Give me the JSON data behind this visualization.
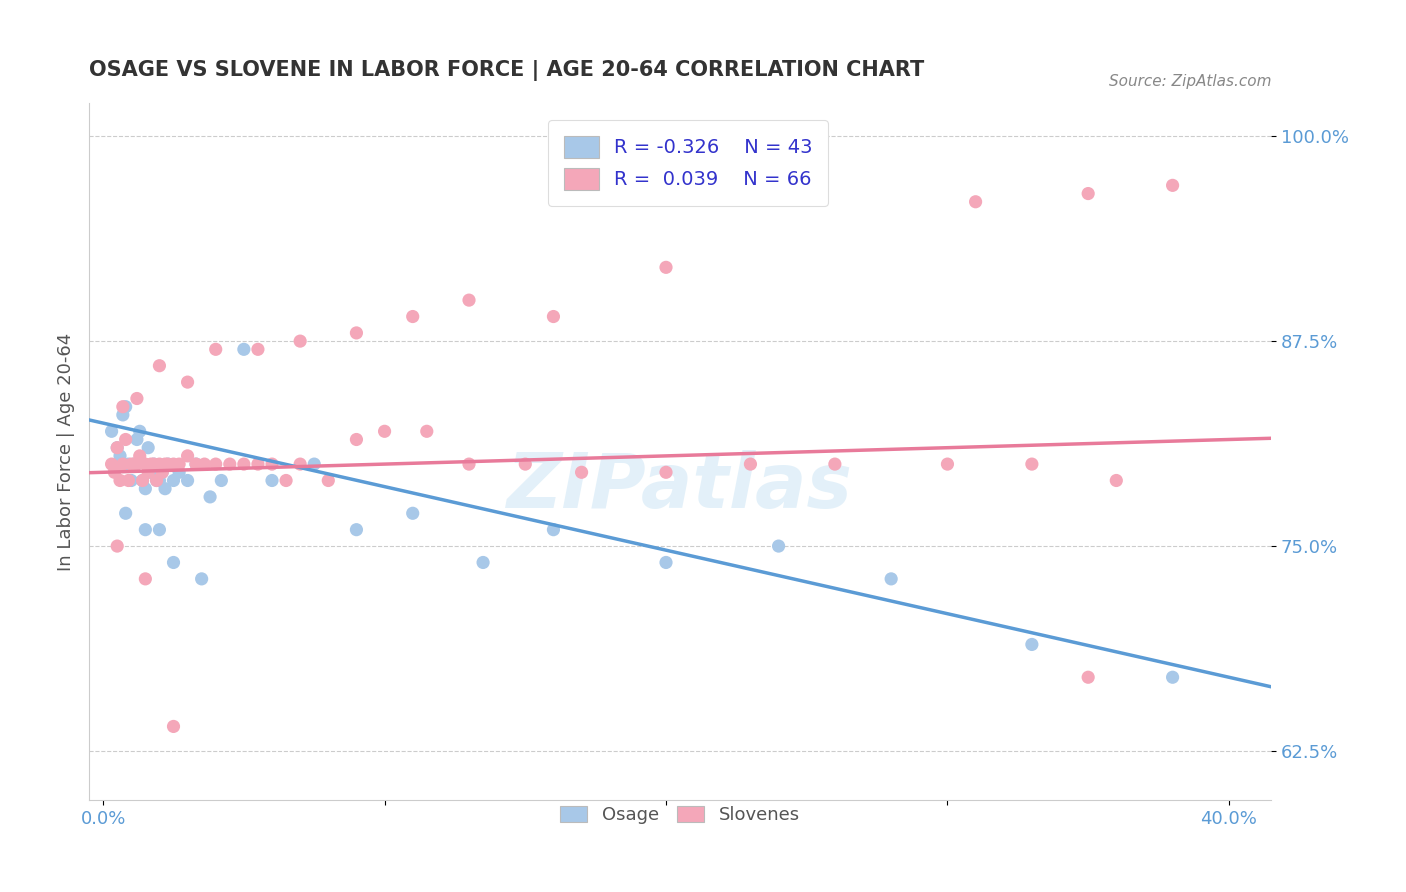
{
  "title": "OSAGE VS SLOVENE IN LABOR FORCE | AGE 20-64 CORRELATION CHART",
  "source_text": "Source: ZipAtlas.com",
  "ylabel": "In Labor Force | Age 20-64",
  "xlim": [
    -0.005,
    0.415
  ],
  "ylim": [
    0.595,
    1.02
  ],
  "xtick_positions": [
    0.0,
    0.1,
    0.2,
    0.3,
    0.4
  ],
  "xtick_labels": [
    "0.0%",
    "",
    "",
    "",
    "40.0%"
  ],
  "ytick_positions": [
    0.625,
    0.75,
    0.875,
    1.0
  ],
  "ytick_labels": [
    "62.5%",
    "75.0%",
    "87.5%",
    "100.0%"
  ],
  "osage_r": -0.326,
  "osage_n": 43,
  "slovene_r": 0.039,
  "slovene_n": 66,
  "osage_color": "#a8c8e8",
  "slovene_color": "#f4a7b9",
  "osage_line_color": "#5b9bd5",
  "slovene_line_color": "#e87a9a",
  "legend_r_color": "#3333cc",
  "osage_x": [
    0.003,
    0.005,
    0.006,
    0.007,
    0.008,
    0.009,
    0.01,
    0.011,
    0.012,
    0.013,
    0.014,
    0.015,
    0.016,
    0.017,
    0.018,
    0.019,
    0.02,
    0.021,
    0.022,
    0.023,
    0.025,
    0.027,
    0.03,
    0.033,
    0.038,
    0.042,
    0.05,
    0.06,
    0.075,
    0.09,
    0.11,
    0.135,
    0.16,
    0.2,
    0.24,
    0.28,
    0.33,
    0.38,
    0.008,
    0.015,
    0.02,
    0.025,
    0.035
  ],
  "osage_y": [
    0.82,
    0.81,
    0.805,
    0.83,
    0.835,
    0.8,
    0.79,
    0.8,
    0.815,
    0.82,
    0.79,
    0.785,
    0.81,
    0.795,
    0.8,
    0.79,
    0.79,
    0.795,
    0.785,
    0.8,
    0.79,
    0.795,
    0.79,
    0.8,
    0.78,
    0.79,
    0.87,
    0.79,
    0.8,
    0.76,
    0.77,
    0.74,
    0.76,
    0.74,
    0.75,
    0.73,
    0.69,
    0.67,
    0.77,
    0.76,
    0.76,
    0.74,
    0.73
  ],
  "slovene_x": [
    0.003,
    0.004,
    0.005,
    0.006,
    0.007,
    0.008,
    0.009,
    0.01,
    0.011,
    0.012,
    0.013,
    0.014,
    0.015,
    0.016,
    0.017,
    0.018,
    0.019,
    0.02,
    0.021,
    0.022,
    0.023,
    0.025,
    0.027,
    0.03,
    0.033,
    0.036,
    0.04,
    0.045,
    0.05,
    0.055,
    0.06,
    0.065,
    0.07,
    0.08,
    0.09,
    0.1,
    0.115,
    0.13,
    0.15,
    0.17,
    0.2,
    0.23,
    0.26,
    0.3,
    0.33,
    0.36,
    0.007,
    0.012,
    0.02,
    0.03,
    0.04,
    0.055,
    0.07,
    0.09,
    0.11,
    0.13,
    0.16,
    0.2,
    0.25,
    0.31,
    0.35,
    0.38,
    0.005,
    0.015,
    0.025,
    0.35
  ],
  "slovene_y": [
    0.8,
    0.795,
    0.81,
    0.79,
    0.8,
    0.815,
    0.79,
    0.8,
    0.8,
    0.8,
    0.805,
    0.79,
    0.8,
    0.795,
    0.8,
    0.8,
    0.79,
    0.8,
    0.795,
    0.8,
    0.8,
    0.8,
    0.8,
    0.805,
    0.8,
    0.8,
    0.8,
    0.8,
    0.8,
    0.8,
    0.8,
    0.79,
    0.8,
    0.79,
    0.815,
    0.82,
    0.82,
    0.8,
    0.8,
    0.795,
    0.795,
    0.8,
    0.8,
    0.8,
    0.8,
    0.79,
    0.835,
    0.84,
    0.86,
    0.85,
    0.87,
    0.87,
    0.875,
    0.88,
    0.89,
    0.9,
    0.89,
    0.92,
    0.965,
    0.96,
    0.965,
    0.97,
    0.75,
    0.73,
    0.64,
    0.67
  ]
}
